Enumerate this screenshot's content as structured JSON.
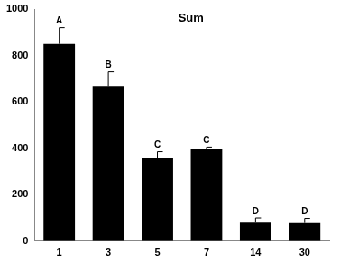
{
  "chart_data": {
    "type": "bar",
    "title": "Sum",
    "categories": [
      "1",
      "3",
      "5",
      "7",
      "14",
      "30"
    ],
    "values": [
      850,
      665,
      360,
      395,
      80,
      78
    ],
    "errors": [
      70,
      65,
      25,
      10,
      20,
      20
    ],
    "annotations": [
      "A",
      "B",
      "C",
      "C",
      "D",
      "D"
    ],
    "color": "#000000",
    "ylim": [
      0,
      1000
    ],
    "yticks": [
      0,
      200,
      400,
      600,
      800,
      1000
    ],
    "grid": false
  }
}
